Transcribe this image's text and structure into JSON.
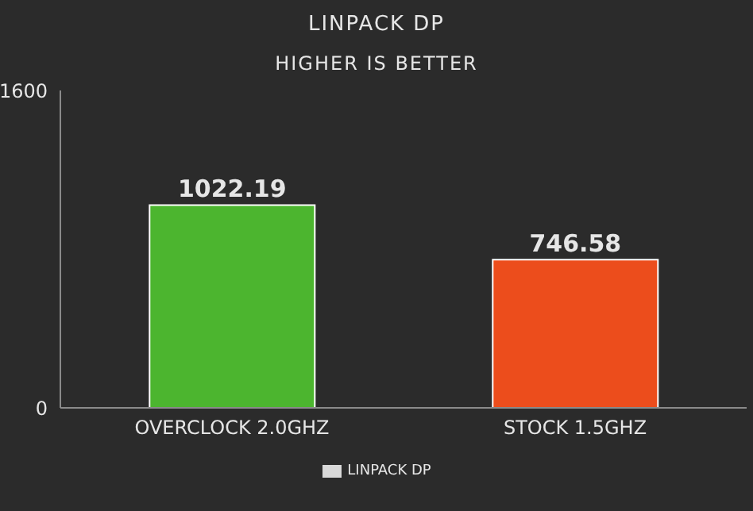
{
  "chart_data": {
    "type": "bar",
    "title": "LINPACK DP",
    "subtitle": "HIGHER IS BETTER",
    "categories": [
      "OVERCLOCK 2.0GHZ",
      "STOCK 1.5GHZ"
    ],
    "series": [
      {
        "name": "LINPACK DP",
        "values": [
          1022.19,
          746.58
        ],
        "colors": [
          "#4cb52f",
          "#ec4d1c"
        ]
      }
    ],
    "ylim": [
      0,
      1600
    ],
    "yticks": [
      0,
      1600
    ],
    "legend": "bottom",
    "data_labels": true
  }
}
